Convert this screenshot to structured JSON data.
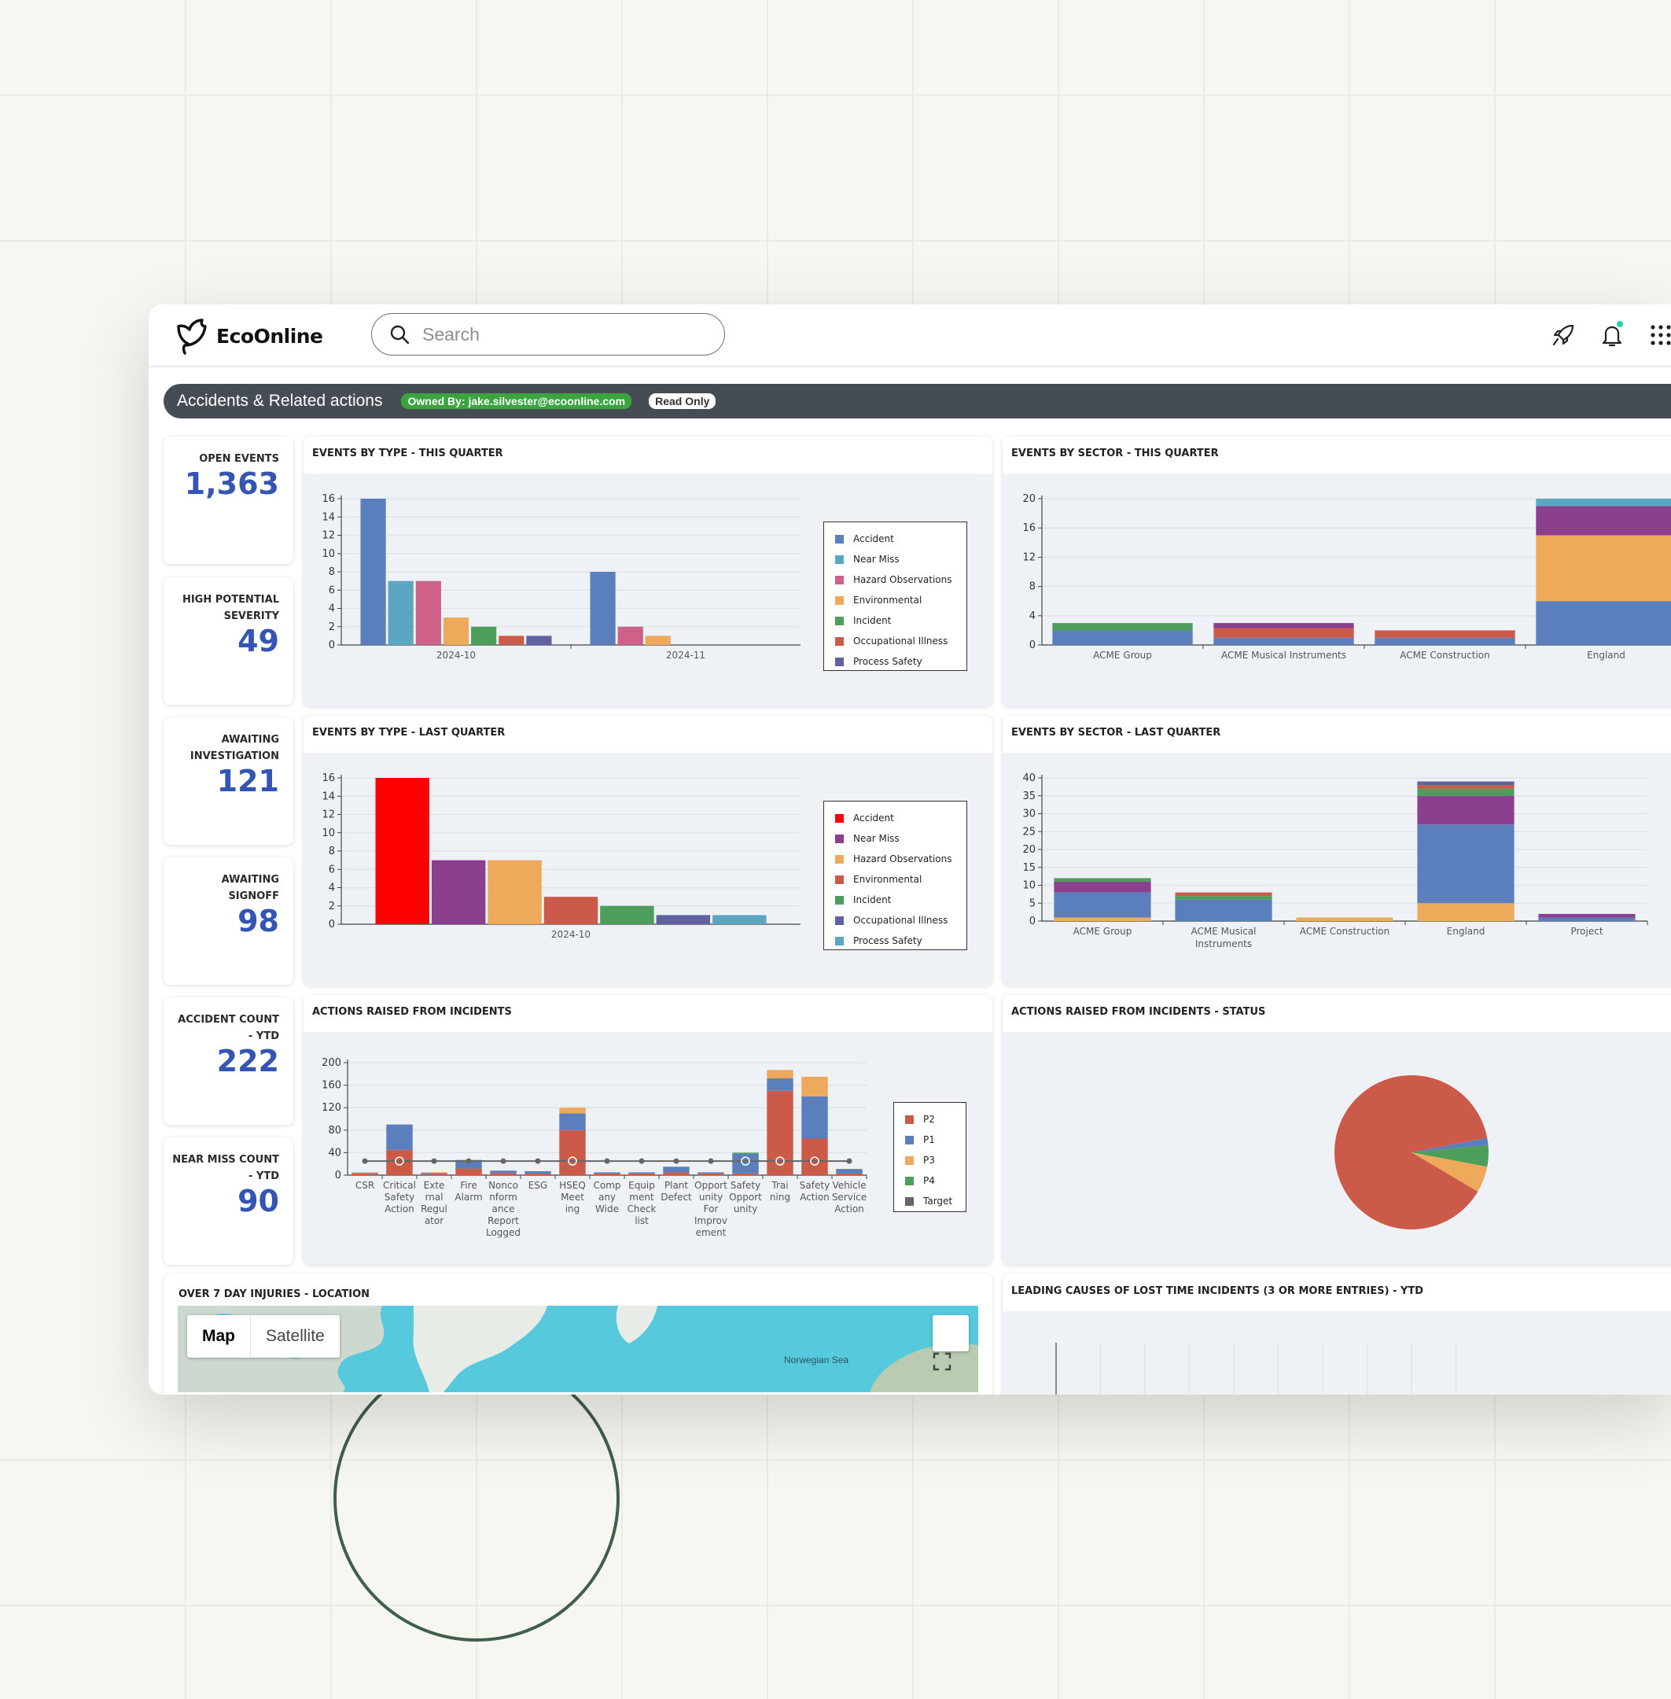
{
  "app": {
    "name": "EcoOnline"
  },
  "search": {
    "placeholder": "Search"
  },
  "dashboard": {
    "title": "Accidents & Related actions",
    "owner_badge": "Owned By: jake.silvester@ecoonline.com",
    "access_badge": "Read Only"
  },
  "kpis": [
    {
      "label": "OPEN EVENTS",
      "value": "1,363"
    },
    {
      "label": "HIGH POTENTIAL SEVERITY",
      "value": "49"
    },
    {
      "label": "AWAITING INVESTIGATION",
      "value": "121"
    },
    {
      "label": "AWAITING SIGNOFF",
      "value": "98"
    },
    {
      "label": "ACCIDENT COUNT - YTD",
      "value": "222"
    },
    {
      "label": "NEAR MISS COUNT - YTD",
      "value": "90"
    }
  ],
  "panels": {
    "type_this_quarter": "EVENTS BY TYPE - THIS QUARTER",
    "sector_this_quarter": "EVENTS BY SECTOR - THIS QUARTER",
    "type_last_quarter": "EVENTS BY TYPE - LAST QUARTER",
    "sector_last_quarter": "EVENTS BY SECTOR - LAST QUARTER",
    "actions_raised": "ACTIONS RAISED FROM INCIDENTS",
    "actions_status": "ACTIONS RAISED FROM INCIDENTS - STATUS",
    "over7_location": "OVER 7 DAY INJURIES - LOCATION",
    "lost_time": "LEADING CAUSES OF LOST TIME INCIDENTS (3 OR MORE ENTRIES) - YTD"
  },
  "map": {
    "map_label": "Map",
    "satellite_label": "Satellite",
    "sea_label": "Norwegian Sea"
  },
  "chart_data": [
    {
      "id": "type_this_quarter",
      "type": "bar",
      "title": "EVENTS BY TYPE - THIS QUARTER",
      "categories": [
        "2024-10",
        "2024-11"
      ],
      "ylim": [
        0,
        16
      ],
      "yticks": [
        0,
        2,
        4,
        6,
        8,
        10,
        12,
        14,
        16
      ],
      "series": [
        {
          "name": "Accident",
          "color": "#5b7fbc",
          "values": [
            16,
            8
          ]
        },
        {
          "name": "Near Miss",
          "color": "#5ba7c1",
          "values": [
            7,
            0
          ]
        },
        {
          "name": "Hazard Observations",
          "color": "#cd6187",
          "values": [
            7,
            2
          ]
        },
        {
          "name": "Environmental",
          "color": "#efa95a",
          "values": [
            3,
            1
          ]
        },
        {
          "name": "Incident",
          "color": "#4c9e5a",
          "values": [
            2,
            0
          ]
        },
        {
          "name": "Occupational Illness",
          "color": "#cc5a48",
          "values": [
            1,
            0
          ]
        },
        {
          "name": "Process Safety",
          "color": "#6160a0",
          "values": [
            1,
            0
          ]
        }
      ],
      "legend_position": "right"
    },
    {
      "id": "sector_this_quarter",
      "type": "bar",
      "stacked": true,
      "title": "EVENTS BY SECTOR - THIS QUARTER",
      "categories": [
        "ACME Group",
        "ACME Musical Instruments",
        "ACME Construction",
        "England"
      ],
      "ylim": [
        0,
        20
      ],
      "yticks": [
        0,
        4,
        8,
        12,
        16,
        20
      ],
      "series": [
        {
          "color": "#5b7fbc",
          "values": [
            2,
            1,
            1,
            6
          ]
        },
        {
          "color": "#4c9e5a",
          "values": [
            1,
            0,
            0,
            0
          ]
        },
        {
          "color": "#cc5a48",
          "values": [
            0,
            1.3,
            1,
            0
          ]
        },
        {
          "color": "#efa95a",
          "values": [
            0,
            0,
            0,
            9
          ]
        },
        {
          "color": "#8b3f8f",
          "values": [
            0,
            0.7,
            0,
            4
          ]
        },
        {
          "color": "#5ba7c1",
          "values": [
            0,
            0,
            0,
            1
          ]
        }
      ]
    },
    {
      "id": "type_last_quarter",
      "type": "bar",
      "title": "EVENTS BY TYPE - LAST QUARTER",
      "categories": [
        "2024-10"
      ],
      "ylim": [
        0,
        16
      ],
      "yticks": [
        0,
        2,
        4,
        6,
        8,
        10,
        12,
        14,
        16
      ],
      "series": [
        {
          "name": "Accident",
          "color": "#ff0000",
          "values": [
            16
          ]
        },
        {
          "name": "Near Miss",
          "color": "#8b3f8f",
          "values": [
            7
          ]
        },
        {
          "name": "Hazard Observations",
          "color": "#efa95a",
          "values": [
            7
          ]
        },
        {
          "name": "Environmental",
          "color": "#cc5a48",
          "values": [
            3
          ]
        },
        {
          "name": "Incident",
          "color": "#4c9e5a",
          "values": [
            2
          ]
        },
        {
          "name": "Occupational Illness",
          "color": "#6160a0",
          "values": [
            1
          ]
        },
        {
          "name": "Process Safety",
          "color": "#5ba7c1",
          "values": [
            1
          ]
        }
      ],
      "legend_position": "right"
    },
    {
      "id": "sector_last_quarter",
      "type": "bar",
      "stacked": true,
      "title": "EVENTS BY SECTOR - LAST QUARTER",
      "categories": [
        "ACME Group",
        "ACME Musical Instruments",
        "ACME Construction",
        "England",
        "Project"
      ],
      "ylim": [
        0,
        40
      ],
      "yticks": [
        0,
        5,
        10,
        15,
        20,
        25,
        30,
        35,
        40
      ],
      "series": [
        {
          "color": "#efa95a",
          "values": [
            1,
            0,
            1,
            5,
            0
          ]
        },
        {
          "color": "#5b7fbc",
          "values": [
            7,
            6,
            0,
            22,
            1
          ]
        },
        {
          "color": "#8b3f8f",
          "values": [
            3,
            0,
            0,
            8,
            1
          ]
        },
        {
          "color": "#4c9e5a",
          "values": [
            1,
            1,
            0,
            2,
            0
          ]
        },
        {
          "color": "#cc5a48",
          "values": [
            0,
            1,
            0,
            1,
            0
          ]
        },
        {
          "color": "#6160a0",
          "values": [
            0,
            0,
            0,
            1,
            0
          ]
        }
      ]
    },
    {
      "id": "actions_raised",
      "type": "bar",
      "stacked": true,
      "title": "ACTIONS RAISED FROM INCIDENTS",
      "categories": [
        "CSR",
        "Critical Safety Action",
        "External Regulator",
        "Fire Alarm",
        "Nonconformance Report Logged",
        "ESG",
        "HSEQ Meeting",
        "Company Wide",
        "Equipment Checklist",
        "Plant Defect",
        "Opportunity For Improvement",
        "Safety Opportunity",
        "Training",
        "Safety Action",
        "Vehicle Service Action"
      ],
      "category_lines": [
        [
          "CSR"
        ],
        [
          "Critical",
          "Safety",
          "Action"
        ],
        [
          "Exte",
          "rnal",
          "Regul",
          "ator"
        ],
        [
          "Fire",
          "Alarm"
        ],
        [
          "Nonco",
          "nform",
          "ance",
          "Report",
          "Logged"
        ],
        [
          "ESG"
        ],
        [
          "HSEQ",
          "Meet",
          "ing"
        ],
        [
          "Comp",
          "any",
          "Wide"
        ],
        [
          "Equip",
          "ment",
          "Check",
          "list"
        ],
        [
          "Plant",
          "Defect"
        ],
        [
          "Opport",
          "unity",
          "For",
          "Improv",
          "ement"
        ],
        [
          "Safety",
          "Opport",
          "unity"
        ],
        [
          "Trai",
          "ning"
        ],
        [
          "Safety",
          "Action"
        ],
        [
          "Vehicle",
          "Service",
          "Action"
        ]
      ],
      "ylim": [
        0,
        200
      ],
      "yticks": [
        0,
        40,
        80,
        120,
        160,
        200
      ],
      "series": [
        {
          "name": "P2",
          "color": "#cc5a48",
          "values": [
            3,
            45,
            2,
            12,
            4,
            3,
            80,
            3,
            3,
            5,
            3,
            3,
            150,
            65,
            3
          ]
        },
        {
          "name": "P1",
          "color": "#5b7fbc",
          "values": [
            1,
            45,
            2,
            15,
            4,
            4,
            30,
            2,
            2,
            10,
            2,
            35,
            22,
            75,
            8
          ]
        },
        {
          "name": "P3",
          "color": "#efa95a",
          "values": [
            1,
            0,
            1,
            0,
            0,
            0,
            10,
            0,
            0,
            0,
            0,
            0,
            15,
            35,
            0
          ]
        },
        {
          "name": "P4",
          "color": "#4c9e5a",
          "values": [
            0,
            0,
            0,
            0,
            0,
            0,
            0,
            0,
            0,
            0,
            0,
            2,
            0,
            0,
            0
          ]
        },
        {
          "name": "Target",
          "color": "#666666",
          "type": "line",
          "values": [
            25,
            25,
            25,
            25,
            25,
            25,
            25,
            25,
            25,
            25,
            25,
            25,
            25,
            25,
            25
          ]
        }
      ],
      "legend_position": "right"
    },
    {
      "id": "actions_status",
      "type": "pie",
      "title": "ACTIONS RAISED FROM INCIDENTS - STATUS",
      "slices": [
        {
          "color": "#cc5a48",
          "value": 88.5
        },
        {
          "color": "#efa95a",
          "value": 5.5
        },
        {
          "color": "#4c9e5a",
          "value": 4.5
        },
        {
          "color": "#5b7fbc",
          "value": 1.5
        }
      ]
    }
  ]
}
